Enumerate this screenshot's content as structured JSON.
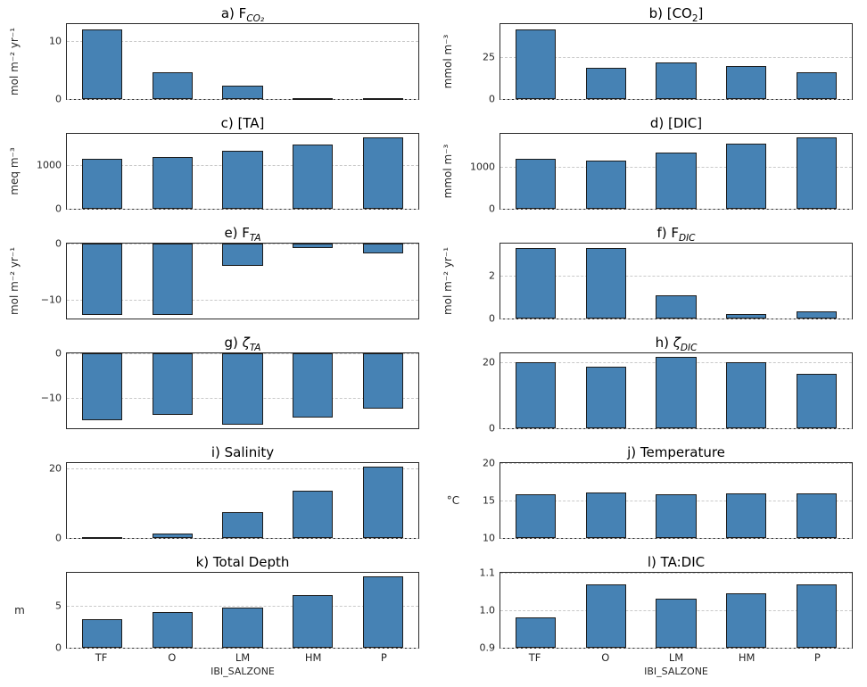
{
  "figure": {
    "categories": [
      "TF",
      "O",
      "LM",
      "HM",
      "P"
    ],
    "xlabel": "IBI_SALZONE",
    "bar_color": "#4682b4",
    "bar_edge_color": "#1c1c1c",
    "grid_color": "#c9c9c9"
  },
  "chart_data": [
    {
      "id": "a",
      "type": "bar",
      "title_segments": [
        {
          "text": "a) F"
        },
        {
          "text": "CO₂",
          "sub": true,
          "italic": true
        }
      ],
      "ylabel": "mol m⁻² yr⁻¹",
      "ylabel_rotated": true,
      "ylim": [
        0,
        13
      ],
      "ticks": [
        {
          "v": 0,
          "label": "0"
        },
        {
          "v": 10,
          "label": "10"
        }
      ],
      "categories": [
        "TF",
        "O",
        "LM",
        "HM",
        "P"
      ],
      "values": [
        12.0,
        4.7,
        2.3,
        0.2,
        0.2
      ],
      "show_xticks": false
    },
    {
      "id": "b",
      "type": "bar",
      "title_segments": [
        {
          "text": "b) [CO"
        },
        {
          "text": "2",
          "sub": true
        },
        {
          "text": "]"
        }
      ],
      "ylabel": "mmol m⁻³",
      "ylabel_rotated": true,
      "ylim": [
        0,
        45
      ],
      "ticks": [
        {
          "v": 0,
          "label": "0"
        },
        {
          "v": 25,
          "label": "25"
        }
      ],
      "categories": [
        "TF",
        "O",
        "LM",
        "HM",
        "P"
      ],
      "values": [
        42,
        19,
        22,
        20,
        16
      ],
      "show_xticks": false
    },
    {
      "id": "c",
      "type": "bar",
      "title_segments": [
        {
          "text": "c) [TA]"
        }
      ],
      "ylabel": "meq m⁻³",
      "ylabel_rotated": true,
      "ylim": [
        0,
        1700
      ],
      "ticks": [
        {
          "v": 0,
          "label": "0"
        },
        {
          "v": 1000,
          "label": "1000"
        }
      ],
      "categories": [
        "TF",
        "O",
        "LM",
        "HM",
        "P"
      ],
      "values": [
        1130,
        1180,
        1310,
        1460,
        1620
      ],
      "show_xticks": false
    },
    {
      "id": "d",
      "type": "bar",
      "title_segments": [
        {
          "text": "d) [DIC]"
        }
      ],
      "ylabel": "mmol m⁻³",
      "ylabel_rotated": true,
      "ylim": [
        0,
        1770
      ],
      "ticks": [
        {
          "v": 0,
          "label": "0"
        },
        {
          "v": 1000,
          "label": "1000"
        }
      ],
      "categories": [
        "TF",
        "O",
        "LM",
        "HM",
        "P"
      ],
      "values": [
        1180,
        1130,
        1330,
        1530,
        1680
      ],
      "show_xticks": false
    },
    {
      "id": "e",
      "type": "bar",
      "title_segments": [
        {
          "text": "e) F"
        },
        {
          "text": "TA",
          "sub": true,
          "italic": true
        }
      ],
      "ylabel": "mol m⁻² yr⁻¹",
      "ylabel_rotated": true,
      "ylim": [
        -13.3,
        0
      ],
      "ticks": [
        {
          "v": 0,
          "label": "0"
        },
        {
          "v": -10,
          "label": "−10"
        }
      ],
      "categories": [
        "TF",
        "O",
        "LM",
        "HM",
        "P"
      ],
      "values": [
        -12.6,
        -12.6,
        -4.0,
        -0.8,
        -1.7
      ],
      "show_xticks": false
    },
    {
      "id": "f",
      "type": "bar",
      "title_segments": [
        {
          "text": "f) F"
        },
        {
          "text": "DIC",
          "sub": true,
          "italic": true
        }
      ],
      "ylabel": "mol m⁻² yr⁻¹",
      "ylabel_rotated": true,
      "ylim": [
        0,
        3.5
      ],
      "ticks": [
        {
          "v": 0,
          "label": "0"
        },
        {
          "v": 2,
          "label": "2"
        }
      ],
      "categories": [
        "TF",
        "O",
        "LM",
        "HM",
        "P"
      ],
      "values": [
        3.3,
        3.3,
        1.1,
        0.2,
        0.35
      ],
      "show_xticks": false
    },
    {
      "id": "g",
      "type": "bar",
      "title_segments": [
        {
          "text": "g) "
        },
        {
          "text": "ζ",
          "italic": true
        },
        {
          "text": "TA",
          "sub": true,
          "italic": true
        }
      ],
      "ylabel": "",
      "ylabel_rotated": true,
      "ylim": [
        -16.8,
        0
      ],
      "ticks": [
        {
          "v": 0,
          "label": "0"
        },
        {
          "v": -10,
          "label": "−10"
        }
      ],
      "categories": [
        "TF",
        "O",
        "LM",
        "HM",
        "P"
      ],
      "values": [
        -14.9,
        -13.8,
        -16.0,
        -14.4,
        -12.4
      ],
      "show_xticks": false
    },
    {
      "id": "h",
      "type": "bar",
      "title_segments": [
        {
          "text": "h) "
        },
        {
          "text": "ζ",
          "italic": true
        },
        {
          "text": "DIC",
          "sub": true,
          "italic": true
        }
      ],
      "ylabel": "",
      "ylabel_rotated": true,
      "ylim": [
        0,
        22.6
      ],
      "ticks": [
        {
          "v": 0,
          "label": "0"
        },
        {
          "v": 20,
          "label": "20"
        }
      ],
      "categories": [
        "TF",
        "O",
        "LM",
        "HM",
        "P"
      ],
      "values": [
        19.8,
        18.5,
        21.5,
        19.9,
        16.4
      ],
      "show_xticks": false
    },
    {
      "id": "i",
      "type": "bar",
      "title_segments": [
        {
          "text": "i) Salinity"
        }
      ],
      "ylabel": "",
      "ylabel_rotated": true,
      "ylim": [
        0,
        21.5
      ],
      "ticks": [
        {
          "v": 0,
          "label": "0"
        },
        {
          "v": 20,
          "label": "20"
        }
      ],
      "categories": [
        "TF",
        "O",
        "LM",
        "HM",
        "P"
      ],
      "values": [
        0.2,
        1.2,
        7.5,
        13.5,
        20.4
      ],
      "show_xticks": false
    },
    {
      "id": "j",
      "type": "bar",
      "title_segments": [
        {
          "text": "j) Temperature"
        }
      ],
      "ylabel": "°C",
      "ylabel_rotated": false,
      "ylim": [
        10,
        20
      ],
      "ticks": [
        {
          "v": 10,
          "label": "10"
        },
        {
          "v": 15,
          "label": "15"
        },
        {
          "v": 20,
          "label": "20"
        }
      ],
      "categories": [
        "TF",
        "O",
        "LM",
        "HM",
        "P"
      ],
      "values": [
        15.8,
        16.1,
        15.8,
        16.0,
        15.9
      ],
      "show_xticks": false
    },
    {
      "id": "k",
      "type": "bar",
      "title_segments": [
        {
          "text": "k) Total Depth"
        }
      ],
      "ylabel": "m",
      "ylabel_rotated": false,
      "ylim": [
        0,
        8.9
      ],
      "ticks": [
        {
          "v": 0,
          "label": "0"
        },
        {
          "v": 5,
          "label": "5"
        }
      ],
      "categories": [
        "TF",
        "O",
        "LM",
        "HM",
        "P"
      ],
      "values": [
        3.4,
        4.2,
        4.8,
        6.2,
        8.5
      ],
      "show_xticks": true,
      "xlabel": "IBI_SALZONE"
    },
    {
      "id": "l",
      "type": "bar",
      "title_segments": [
        {
          "text": "l) TA:DIC"
        }
      ],
      "ylabel": "",
      "ylabel_rotated": true,
      "ylim": [
        0.9,
        1.1
      ],
      "ticks": [
        {
          "v": 0.9,
          "label": "0.9"
        },
        {
          "v": 1.0,
          "label": "1.0"
        },
        {
          "v": 1.1,
          "label": "1.1"
        }
      ],
      "categories": [
        "TF",
        "O",
        "LM",
        "HM",
        "P"
      ],
      "values": [
        0.98,
        1.068,
        1.03,
        1.045,
        1.068
      ],
      "show_xticks": true,
      "xlabel": "IBI_SALZONE"
    }
  ]
}
